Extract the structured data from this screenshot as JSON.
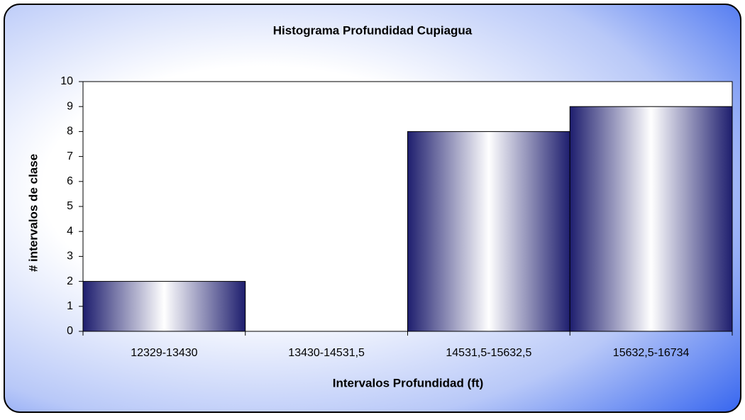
{
  "chart_data": {
    "type": "bar",
    "title": "Histograma Profundidad Cupiagua",
    "x_label": "Intervalos Profundidad (ft)",
    "y_label": "# intervalos de clase",
    "categories": [
      "12329-13430",
      "13430-14531,5",
      "14531,5-15632,5",
      "15632,5-16734"
    ],
    "values": [
      2,
      0,
      8,
      9
    ],
    "color": "#1e1e6e",
    "ylim": [
      0,
      10
    ],
    "yticks": [
      0,
      1,
      2,
      3,
      4,
      5,
      6,
      7,
      8,
      9,
      10
    ],
    "grid": false
  }
}
